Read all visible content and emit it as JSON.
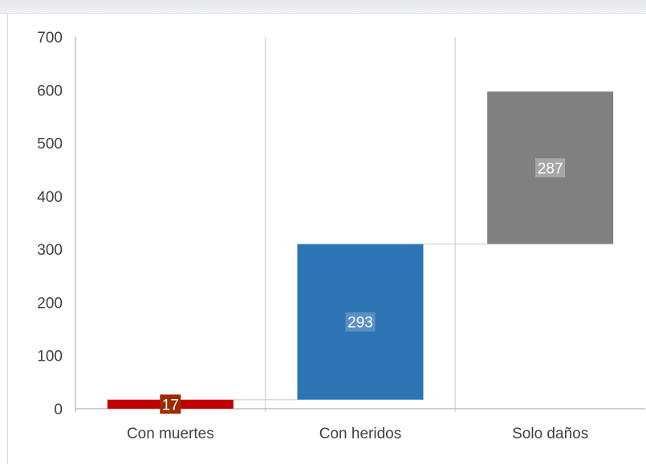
{
  "chart_data": {
    "type": "bar",
    "subtype": "waterfall",
    "title": "",
    "xlabel": "",
    "ylabel": "",
    "ylim": [
      0,
      700
    ],
    "yticks": [
      0,
      100,
      200,
      300,
      400,
      500,
      600,
      700
    ],
    "grid": "vertical lines between categories",
    "legend": "none",
    "categories": [
      "Con muertes",
      "Con heridos",
      "Solo daños"
    ],
    "values": [
      17,
      293,
      287
    ],
    "start": [
      0,
      17,
      310
    ],
    "end": [
      17,
      310,
      597
    ],
    "data_labels": [
      "17",
      "293",
      "287"
    ],
    "colors": [
      "#c00000",
      "#2e75b6",
      "#808080"
    ],
    "label_box_colors": [
      "#9e2a00",
      "#5b8fc7",
      "#a6a6a6"
    ],
    "connector_color": "#d9d9d9",
    "axis_color": "#bfbfbf",
    "gridline_color": "#d9d9d9"
  }
}
